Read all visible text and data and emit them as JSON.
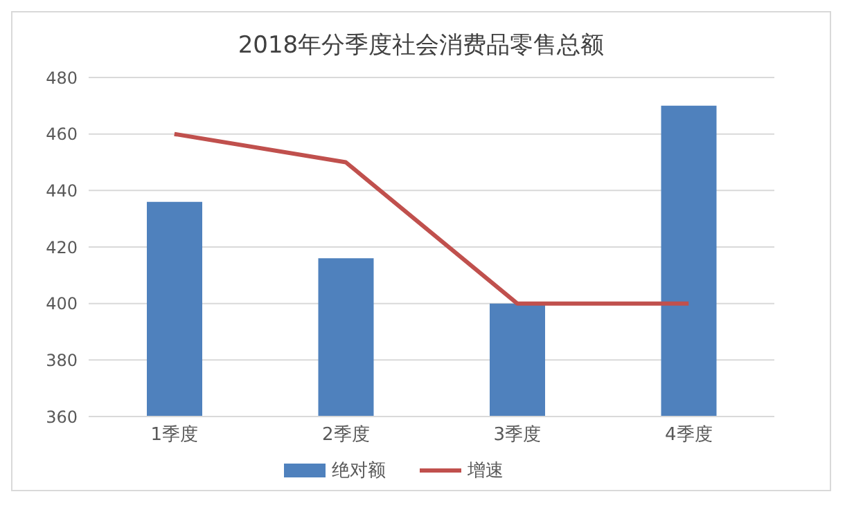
{
  "chart_data": {
    "type": "bar",
    "title": "2018年分季度社会消费品零售总额",
    "categories": [
      "1季度",
      "2季度",
      "3季度",
      "4季度"
    ],
    "series": [
      {
        "name": "绝对额",
        "color": "#4f81bd",
        "values": [
          436,
          416,
          400,
          470
        ]
      },
      {
        "name": "增速",
        "type": "line",
        "color": "#c0504d",
        "values": [
          460,
          450,
          400,
          400
        ]
      }
    ],
    "ylim": [
      360,
      480
    ],
    "yticks": [
      360,
      380,
      400,
      420,
      440,
      460,
      480
    ],
    "grid": "y",
    "legend": "bottom",
    "marker": "none"
  }
}
